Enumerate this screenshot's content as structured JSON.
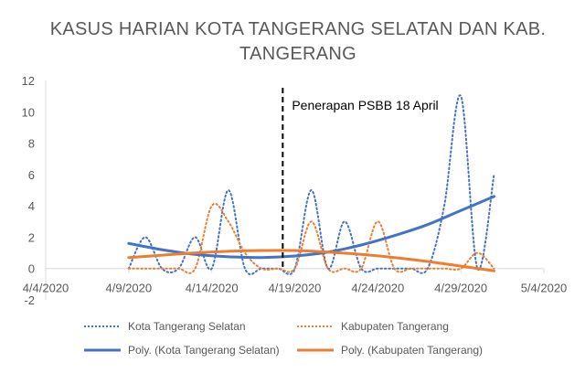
{
  "chart_data": {
    "type": "line",
    "title_lines": [
      "KASUS HARIAN KOTA TANGERANG SELATAN DAN KAB.",
      "TANGERANG"
    ],
    "x_tick_labels": [
      "4/4/2020",
      "4/9/2020",
      "4/14/2020",
      "4/19/2020",
      "4/24/2020",
      "4/29/2020",
      "5/4/2020"
    ],
    "y_tick_labels": [
      "-2",
      "0",
      "2",
      "4",
      "6",
      "8",
      "10",
      "12"
    ],
    "ylim": [
      -2,
      12
    ],
    "xlim": [
      "2020-04-04",
      "2020-05-04"
    ],
    "grid": "none",
    "legend_position": "bottom",
    "annotation": {
      "text": "Penerapan PSBB 18 April",
      "x": "2020-04-18"
    },
    "series": [
      {
        "name": "Kota Tangerang Selatan",
        "style": "dotted",
        "color": "#4472C4",
        "x": [
          "2020-04-09",
          "2020-04-10",
          "2020-04-11",
          "2020-04-12",
          "2020-04-13",
          "2020-04-14",
          "2020-04-15",
          "2020-04-16",
          "2020-04-17",
          "2020-04-18",
          "2020-04-19",
          "2020-04-20",
          "2020-04-21",
          "2020-04-22",
          "2020-04-23",
          "2020-04-24",
          "2020-04-25",
          "2020-04-26",
          "2020-04-27",
          "2020-04-28",
          "2020-04-29",
          "2020-04-30",
          "2020-05-01"
        ],
        "values": [
          0,
          2,
          0,
          0,
          2,
          0,
          5,
          0,
          0,
          0,
          0,
          5,
          0,
          3,
          0,
          0,
          0,
          0,
          0,
          4,
          11,
          0,
          6
        ]
      },
      {
        "name": "Kabupaten Tangerang",
        "style": "dotted",
        "color": "#ED7D31",
        "x": [
          "2020-04-09",
          "2020-04-10",
          "2020-04-11",
          "2020-04-12",
          "2020-04-13",
          "2020-04-14",
          "2020-04-15",
          "2020-04-16",
          "2020-04-17",
          "2020-04-18",
          "2020-04-19",
          "2020-04-20",
          "2020-04-21",
          "2020-04-22",
          "2020-04-23",
          "2020-04-24",
          "2020-04-25",
          "2020-04-26",
          "2020-04-27",
          "2020-04-28",
          "2020-04-29",
          "2020-04-30",
          "2020-05-01"
        ],
        "values": [
          0,
          0,
          0,
          0,
          0,
          4,
          3,
          1,
          0,
          0,
          0,
          3,
          0,
          0,
          0,
          3,
          0,
          0,
          0,
          0,
          0,
          1,
          0
        ]
      },
      {
        "name": "Poly. (Kota Tangerang Selatan)",
        "style": "solid",
        "color": "#4472C4",
        "x": [
          "2020-04-09",
          "2020-04-11",
          "2020-04-13",
          "2020-04-15",
          "2020-04-17",
          "2020-04-19",
          "2020-04-21",
          "2020-04-23",
          "2020-04-25",
          "2020-04-27",
          "2020-04-29",
          "2020-05-01"
        ],
        "values": [
          1.6,
          1.2,
          0.9,
          0.75,
          0.7,
          0.8,
          1.05,
          1.5,
          2.1,
          2.8,
          3.7,
          4.6
        ]
      },
      {
        "name": "Poly. (Kabupaten Tangerang)",
        "style": "solid",
        "color": "#ED7D31",
        "x": [
          "2020-04-09",
          "2020-04-11",
          "2020-04-13",
          "2020-04-15",
          "2020-04-17",
          "2020-04-19",
          "2020-04-21",
          "2020-04-23",
          "2020-04-25",
          "2020-04-27",
          "2020-04-29",
          "2020-05-01"
        ],
        "values": [
          0.7,
          0.85,
          1.0,
          1.1,
          1.15,
          1.15,
          1.05,
          0.9,
          0.7,
          0.45,
          0.15,
          -0.15
        ]
      }
    ],
    "legend": [
      "Kota Tangerang Selatan",
      "Kabupaten Tangerang",
      "Poly. (Kota Tangerang Selatan)",
      "Poly. (Kabupaten Tangerang)"
    ]
  }
}
